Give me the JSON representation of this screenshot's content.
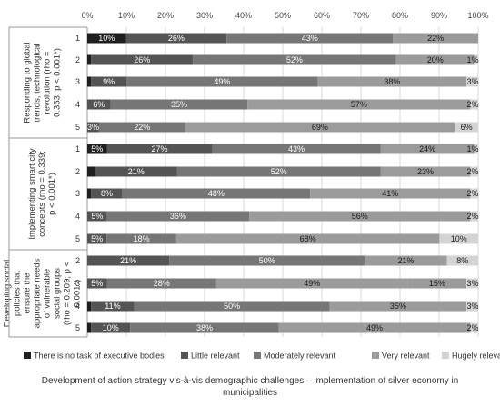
{
  "chart_data": {
    "type": "bar",
    "stacked": "percent",
    "orientation": "horizontal",
    "xlim": [
      0,
      100
    ],
    "x_ticks": [
      "0%",
      "10%",
      "20%",
      "30%",
      "40%",
      "50%",
      "60%",
      "70%",
      "80%",
      "90%",
      "100%"
    ],
    "legend_position": "bottom",
    "caption": "Development of action strategy vis-à-vis demographic challenges – implementation of silver economy in municipalities",
    "series": [
      {
        "name": "There is no task of executive bodies",
        "color": "#1f1f1f"
      },
      {
        "name": "Little relevant",
        "color": "#545454"
      },
      {
        "name": "Moderately relevant",
        "color": "#767676"
      },
      {
        "name": "Very relevant",
        "color": "#9b9b9b"
      },
      {
        "name": "Hugely relevant",
        "color": "#d4d4d4"
      }
    ],
    "groups": [
      {
        "label": "Responding to global trends, technological revolution (rho = 0.363; p < 0.001*)",
        "rows": [
          {
            "category": "1",
            "values": [
              10,
              26,
              43,
              22,
              0
            ],
            "labels": [
              "10%",
              "26%",
              "43%",
              "22%",
              ""
            ]
          },
          {
            "category": "2",
            "values": [
              1,
              26,
              52,
              20,
              1
            ],
            "labels": [
              "",
              "26%",
              "52%",
              "20%",
              "1%"
            ]
          },
          {
            "category": "3",
            "values": [
              1,
              9,
              49,
              38,
              3
            ],
            "labels": [
              "",
              "9%",
              "49%",
              "38%",
              "3%"
            ]
          },
          {
            "category": "4",
            "values": [
              0,
              6,
              35,
              57,
              2
            ],
            "labels": [
              "",
              "6%",
              "35%",
              "57%",
              "2%"
            ]
          },
          {
            "category": "5",
            "values": [
              0,
              3,
              22,
              69,
              6
            ],
            "labels": [
              "",
              "3%",
              "22%",
              "69%",
              "6%"
            ]
          }
        ]
      },
      {
        "label": "Implementing smart city concepts (rho = 0.339; p < 0.001*)",
        "rows": [
          {
            "category": "1",
            "values": [
              5,
              27,
              43,
              24,
              1
            ],
            "labels": [
              "5%",
              "27%",
              "43%",
              "24%",
              "1%"
            ]
          },
          {
            "category": "2",
            "values": [
              2,
              21,
              52,
              23,
              2
            ],
            "labels": [
              "",
              "21%",
              "52%",
              "23%",
              "2%"
            ]
          },
          {
            "category": "3",
            "values": [
              1,
              8,
              48,
              41,
              2
            ],
            "labels": [
              "",
              "8%",
              "48%",
              "41%",
              "2%"
            ]
          },
          {
            "category": "4",
            "values": [
              0,
              5,
              36,
              56,
              2
            ],
            "labels": [
              "",
              "5%",
              "36%",
              "56%",
              "2%"
            ]
          },
          {
            "category": "5",
            "values": [
              0,
              5,
              18,
              68,
              10
            ],
            "labels": [
              "",
              "5%",
              "18%",
              "68%",
              "10%"
            ]
          }
        ]
      },
      {
        "label": "Developing social policies that ensure the appropriate needs of vulnerable social groups (rho = 0.209; p < 0.001*)",
        "rows": [
          {
            "category": "2",
            "values": [
              0,
              21,
              50,
              21,
              8
            ],
            "labels": [
              "",
              "21%",
              "50%",
              "21%",
              "8%"
            ]
          },
          {
            "category": "3",
            "values": [
              0,
              5,
              28,
              49,
              15,
              3
            ],
            "labels": [
              "",
              "5%",
              "28%",
              "49%",
              "15%",
              "3%"
            ],
            "seg_colors": [
              "#1f1f1f",
              "#545454",
              "#767676",
              "#9b9b9b",
              "#9b9b9b",
              "#d4d4d4"
            ]
          },
          {
            "category": "4",
            "values": [
              1,
              11,
              50,
              35,
              3
            ],
            "labels": [
              "",
              "11%",
              "50%",
              "35%",
              "3%"
            ]
          },
          {
            "category": "5",
            "values": [
              1,
              10,
              38,
              49,
              2
            ],
            "labels": [
              "",
              "10%",
              "38%",
              "49%",
              "2%"
            ]
          }
        ]
      }
    ]
  }
}
